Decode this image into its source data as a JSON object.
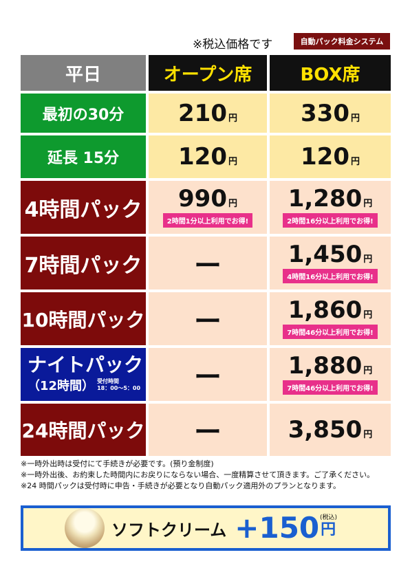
{
  "tax_note": "※税込価格です",
  "system_badge": "自動パック料金システム",
  "header": {
    "plan": "平日",
    "open": "オープン席",
    "box": "BOX席"
  },
  "rows": [
    {
      "label": "最初の30分",
      "open_price": "210",
      "open_yen": "円",
      "box_price": "330",
      "box_yen": "円"
    },
    {
      "label": "延長 15分",
      "open_price": "120",
      "open_yen": "円",
      "box_price": "120",
      "box_yen": "円"
    },
    {
      "label": "4時間パック",
      "open_price": "990",
      "open_yen": "円",
      "open_deal": "2時間1分以上利用でお得!",
      "box_price": "1,280",
      "box_yen": "円",
      "box_deal": "2時間16分以上利用でお得!"
    },
    {
      "label": "7時間パック",
      "open_dash": "ー",
      "box_price": "1,450",
      "box_yen": "円",
      "box_deal": "4時間16分以上利用でお得!"
    },
    {
      "label": "10時間パック",
      "open_dash": "ー",
      "box_price": "1,860",
      "box_yen": "円",
      "box_deal": "7時間46分以上利用でお得!"
    },
    {
      "label": "ナイトパック",
      "sublabel": "（12時間）",
      "reception_label": "受付時間",
      "reception_time": "18：00〜5：00",
      "open_dash": "ー",
      "box_price": "1,880",
      "box_yen": "円",
      "box_deal": "7時間46分以上利用でお得!"
    },
    {
      "label": "24時間パック",
      "open_dash": "ー",
      "box_price": "3,850",
      "box_yen": "円"
    }
  ],
  "footnotes": [
    "※一時外出時は受付にて手続きが必要です。(預り金制度)",
    "※一時外出後、お約束した時間内にお戻りにならない場合、一度精算させて頂きます。ご了承ください。",
    "※24 時間パックは受付時に申告・手続きが必要となり自動パック適用外のプランとなります。"
  ],
  "soft_cream": {
    "label": "ソフトクリーム",
    "price": "+150",
    "yen": "円",
    "tax": "(税込)"
  },
  "colors": {
    "green": "#0e9a2e",
    "maroon": "#7d0b0b",
    "navy": "#0a1a9a",
    "yellow_cell": "#fde9a4",
    "peach_cell": "#fde1cc",
    "deal_pink": "#e8308a",
    "header_yellow": "#ffe100",
    "cream_blue": "#1a5fd0"
  }
}
